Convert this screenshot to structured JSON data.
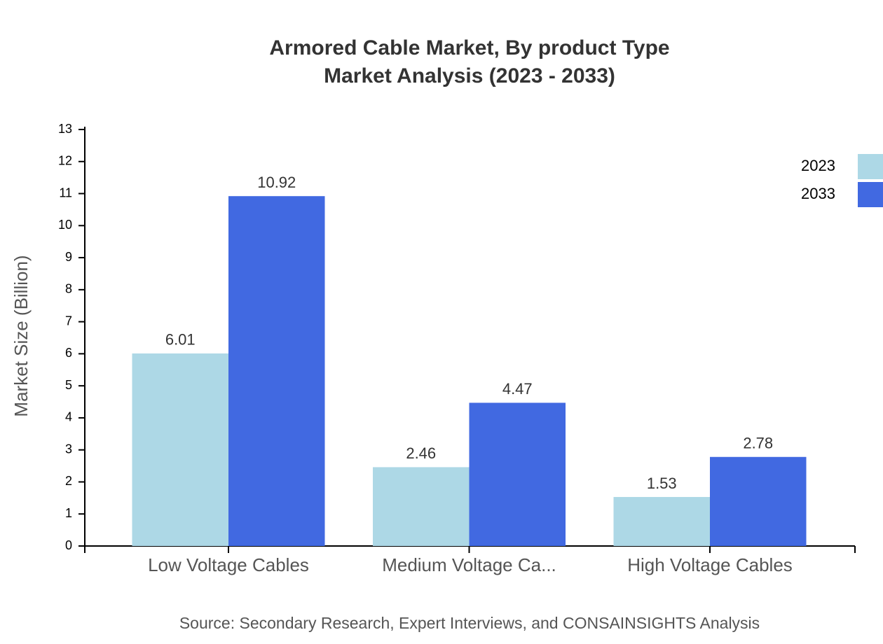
{
  "chart_data": {
    "type": "bar",
    "title": [
      "Armored Cable Market, By product Type",
      "Market Analysis (2023 - 2033)"
    ],
    "y_axis_label": "Market Size (Billion)",
    "source": "Source: Secondary Research, Expert Interviews, and CONSAINSIGHTS Analysis",
    "categories": [
      "Low Voltage Cables",
      "Medium Voltage Ca...",
      "High Voltage Cables"
    ],
    "series": [
      {
        "name": "2023",
        "color": "#add8e6",
        "values": [
          6.01,
          2.46,
          1.53
        ]
      },
      {
        "name": "2033",
        "color": "#4169e1",
        "values": [
          10.92,
          4.47,
          2.78
        ]
      }
    ],
    "ylim": [
      0,
      13
    ],
    "yticks": [
      0,
      1,
      2,
      3,
      4,
      5,
      6,
      7,
      8,
      9,
      10,
      11,
      12,
      13
    ],
    "grid": false,
    "legend": "top-right"
  }
}
